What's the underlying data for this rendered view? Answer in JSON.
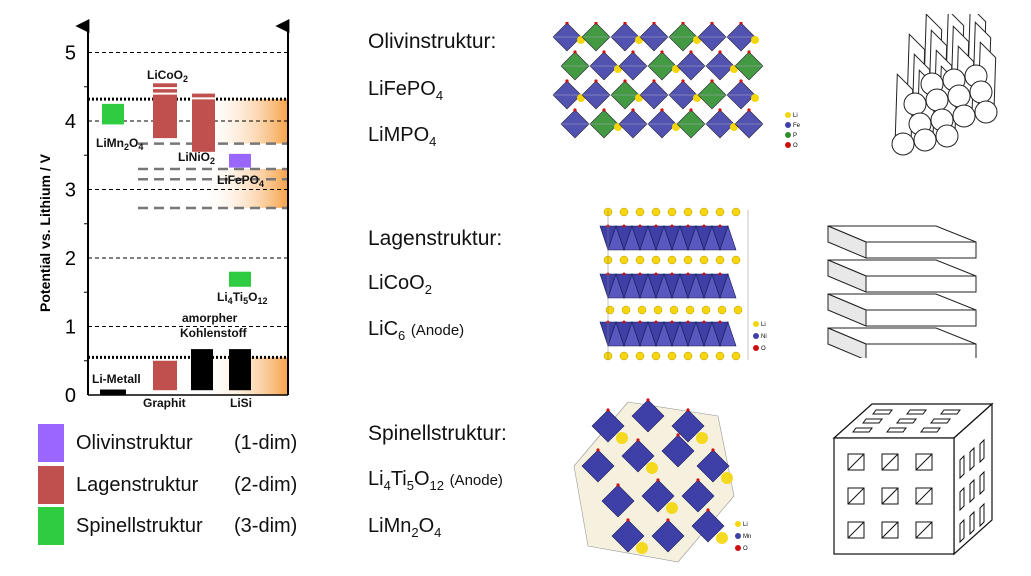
{
  "chart_data": {
    "type": "bar",
    "ylabel": "Potential vs. Lithium / V",
    "ylim": [
      0,
      5.4
    ],
    "yticks": [
      "0",
      "1",
      "2",
      "3",
      "4",
      "5"
    ],
    "materials": [
      {
        "label": "Li-Metall",
        "range": [
          0,
          0.08
        ],
        "color": "#000000",
        "group": "anode"
      },
      {
        "label": "Graphit",
        "range": [
          0.07,
          0.5
        ],
        "color": "#c0504d",
        "group": "anode"
      },
      {
        "label": "amorpher Kohlenstoff",
        "range": [
          0.07,
          0.67
        ],
        "color": "#000000",
        "group": "anode"
      },
      {
        "label": "LiSi",
        "range": [
          0.07,
          0.67
        ],
        "color": "#000000",
        "group": "anode"
      },
      {
        "label": "LiMn2O4",
        "range": [
          3.95,
          4.25
        ],
        "color": "#2ecc40",
        "group": "spinel"
      },
      {
        "label": "LiCoO2",
        "range": [
          3.75,
          4.55
        ],
        "color": "#c0504d",
        "group": "layer"
      },
      {
        "label": "LiNiO2",
        "range": [
          3.55,
          4.4
        ],
        "color": "#c0504d",
        "group": "layer"
      },
      {
        "label": "LiFePO4",
        "range": [
          3.32,
          3.52
        ],
        "color": "#9966ff",
        "group": "olivine"
      },
      {
        "label": "Li4Ti5O12",
        "range": [
          1.58,
          1.8
        ],
        "color": "#2ecc40",
        "group": "spinel"
      }
    ],
    "reference_lines_dotted": [
      4.32,
      0.55
    ],
    "reference_lines_dashed": [
      3.67,
      3.3,
      3.15,
      2.73
    ]
  },
  "legend": [
    {
      "label": "Olivinstruktur",
      "dim": "(1-dim)",
      "color": "#9966ff"
    },
    {
      "label": "Lagenstruktur",
      "dim": "(2-dim)",
      "color": "#c0504d"
    },
    {
      "label": "Spinellstruktur",
      "dim": "(3-dim)",
      "color": "#2ecc40"
    }
  ],
  "structures": [
    {
      "title": "Olivinstruktur:",
      "materials": [
        {
          "base": "LiFePO",
          "sub": "4",
          "note": ""
        },
        {
          "base": "LiMPO",
          "sub": "4",
          "note": ""
        }
      ]
    },
    {
      "title": "Lagenstruktur:",
      "materials": [
        {
          "base": "LiCoO",
          "sub": "2",
          "note": ""
        },
        {
          "base": "LiC",
          "sub": "6",
          "note": "(Anode)"
        }
      ]
    },
    {
      "title": "Spinellstruktur:",
      "materials": [
        {
          "base": "Li",
          "sub": "4",
          "base2": "Ti",
          "sub2": "5",
          "base3": "O",
          "sub3": "12",
          "note": "(Anode)"
        },
        {
          "base": "LiMn",
          "sub": "2",
          "base2": "O",
          "sub2": "4",
          "note": ""
        }
      ]
    }
  ],
  "crystal_legends": {
    "olivine": [
      "Li",
      "Fe",
      "P",
      "O"
    ],
    "layer": [
      "Li",
      "Ni",
      "O"
    ],
    "spinel": [
      "Li",
      "Mn",
      "O"
    ]
  },
  "colors": {
    "orange": "#f7a248",
    "polyhedra_blue": "#3f3fa8",
    "polyhedra_green": "#2f8f2f",
    "atom_yellow": "#f5d60a"
  }
}
